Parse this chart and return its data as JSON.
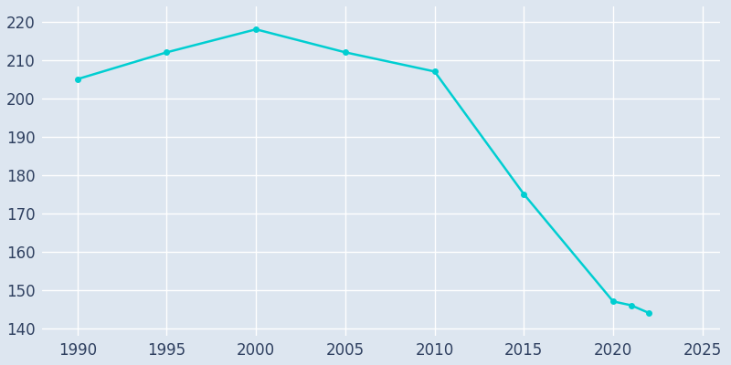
{
  "years": [
    1990,
    1995,
    2000,
    2005,
    2010,
    2015,
    2020,
    2021,
    2022
  ],
  "population": [
    205,
    212,
    218,
    212,
    207,
    175,
    147,
    146,
    144
  ],
  "line_color": "#00CED1",
  "marker_color": "#00CED1",
  "background_color": "#DDE6F0",
  "grid_color": "#FFFFFF",
  "xlim": [
    1988,
    2026
  ],
  "ylim": [
    138,
    224
  ],
  "xticks": [
    1990,
    1995,
    2000,
    2005,
    2010,
    2015,
    2020,
    2025
  ],
  "yticks": [
    140,
    150,
    160,
    170,
    180,
    190,
    200,
    210,
    220
  ],
  "tick_color": "#2F4060",
  "tick_fontsize": 12,
  "line_width": 1.8,
  "marker_size": 4
}
